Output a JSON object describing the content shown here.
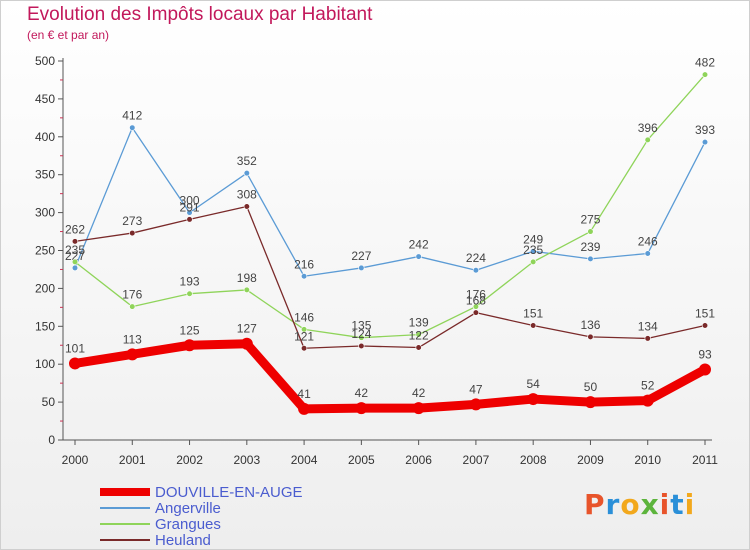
{
  "header": {
    "title": "Evolution des Impôts locaux par Habitant",
    "subtitle": "(en € et par an)"
  },
  "logo": {
    "text": "Proxiti",
    "colors": [
      "#e8542b",
      "#2a8fd8",
      "#f2a81c",
      "#5cb43c",
      "#e8542b",
      "#2a8fd8",
      "#f2a81c"
    ]
  },
  "chart_data": {
    "type": "line",
    "x": [
      "2000",
      "2001",
      "2002",
      "2003",
      "2004",
      "2005",
      "2006",
      "2007",
      "2008",
      "2009",
      "2010",
      "2011"
    ],
    "ylim": [
      0,
      500
    ],
    "yticks": [
      0,
      50,
      100,
      150,
      200,
      250,
      300,
      350,
      400,
      450,
      500
    ],
    "grid": false,
    "legend_position": "bottom-left",
    "series": [
      {
        "name": "Angerville",
        "color": "#5b9bd5",
        "width": 1.3,
        "marker": 2.8,
        "values": [
          227,
          412,
          300,
          352,
          216,
          227,
          242,
          224,
          249,
          239,
          246,
          393
        ]
      },
      {
        "name": "Grangues",
        "color": "#8fd45a",
        "width": 1.3,
        "marker": 2.8,
        "values": [
          235,
          176,
          193,
          198,
          146,
          135,
          139,
          176,
          235,
          275,
          396,
          482
        ]
      },
      {
        "name": "Heuland",
        "color": "#7a2a2a",
        "width": 1.3,
        "marker": 2.8,
        "values": [
          262,
          273,
          291,
          308,
          121,
          124,
          122,
          168,
          151,
          136,
          134,
          151
        ]
      },
      {
        "name": "DOUVILLE-EN-AUGE",
        "color": "#ee0000",
        "width": 9,
        "marker": 6,
        "values": [
          101,
          113,
          125,
          127,
          41,
          42,
          42,
          47,
          54,
          50,
          52,
          93
        ]
      }
    ],
    "legend_order": [
      "DOUVILLE-EN-AUGE",
      "Angerville",
      "Grangues",
      "Heuland"
    ]
  }
}
